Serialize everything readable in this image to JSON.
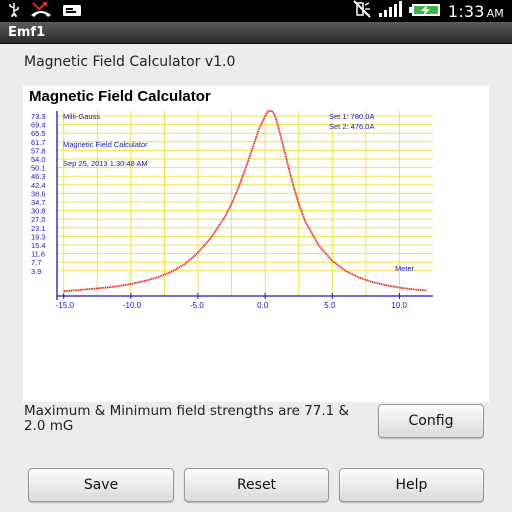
{
  "status_bar": {
    "time": "1:33",
    "ampm": "AM",
    "icons": [
      "usb-icon",
      "missed-call-icon",
      "message-icon",
      "silent-icon",
      "signal-icon",
      "battery-icon"
    ]
  },
  "title_bar": {
    "title": "Emf1"
  },
  "app_heading": "Magnetic Field Calculator v1.0",
  "chart_title": "Magnetic Field Calculator",
  "chart_data": {
    "type": "line",
    "title": "Magnetic Field Calculator",
    "ylabel": "Milli-Gauss",
    "xlabel": "Meter",
    "ytick_labels": [
      "73.3",
      "69.4",
      "65.5",
      "61.7",
      "57.8",
      "54.0",
      "50.1",
      "46.3",
      "42.4",
      "38.6",
      "34.7",
      "30.8",
      "27.0",
      "23.1",
      "19.3",
      "15.4",
      "11.6",
      "7.7",
      "3.9"
    ],
    "xtick_labels": [
      "-15.0",
      "-10.0",
      "-5.0",
      "0.0",
      "5.0",
      "10.0"
    ],
    "xlim": [
      -15.5,
      12.5
    ],
    "ylim": [
      0,
      77.1
    ],
    "annotations": {
      "subtitle": "Magnetic Field Calculator",
      "date": "Sep 25, 2013 1:30:48 AM",
      "set1": "Set 1: 780.0A",
      "set2": "Set 2: 476.0A"
    },
    "series": [
      {
        "color": "#d9241b",
        "x": [
          -15.0,
          -14.0,
          -13.0,
          -12.0,
          -11.0,
          -10.0,
          -9.0,
          -8.0,
          -7.0,
          -6.0,
          -5.0,
          -4.0,
          -3.0,
          -2.5,
          -2.0,
          -1.5,
          -1.0,
          -0.5,
          0.0,
          0.25,
          0.5,
          0.75,
          1.0,
          1.5,
          2.0,
          2.5,
          3.0,
          4.0,
          5.0,
          6.0,
          7.0,
          8.0,
          9.0,
          10.0,
          11.0,
          12.0
        ],
        "y": [
          2.0,
          2.4,
          2.9,
          3.4,
          4.1,
          5.0,
          6.2,
          7.8,
          10.0,
          13.2,
          18.0,
          24.5,
          33.0,
          38.5,
          45.0,
          52.5,
          60.5,
          69.0,
          75.0,
          77.1,
          77.0,
          75.0,
          70.0,
          59.0,
          48.0,
          38.5,
          31.0,
          21.0,
          14.6,
          10.4,
          7.7,
          5.8,
          4.5,
          3.5,
          2.8,
          2.3
        ]
      }
    ],
    "grid": true
  },
  "summary_text": "Maximum & Minimum field strengths are 77.1 & 2.0 mG",
  "buttons": {
    "config": "Config",
    "save": "Save",
    "reset": "Reset",
    "help": "Help"
  }
}
